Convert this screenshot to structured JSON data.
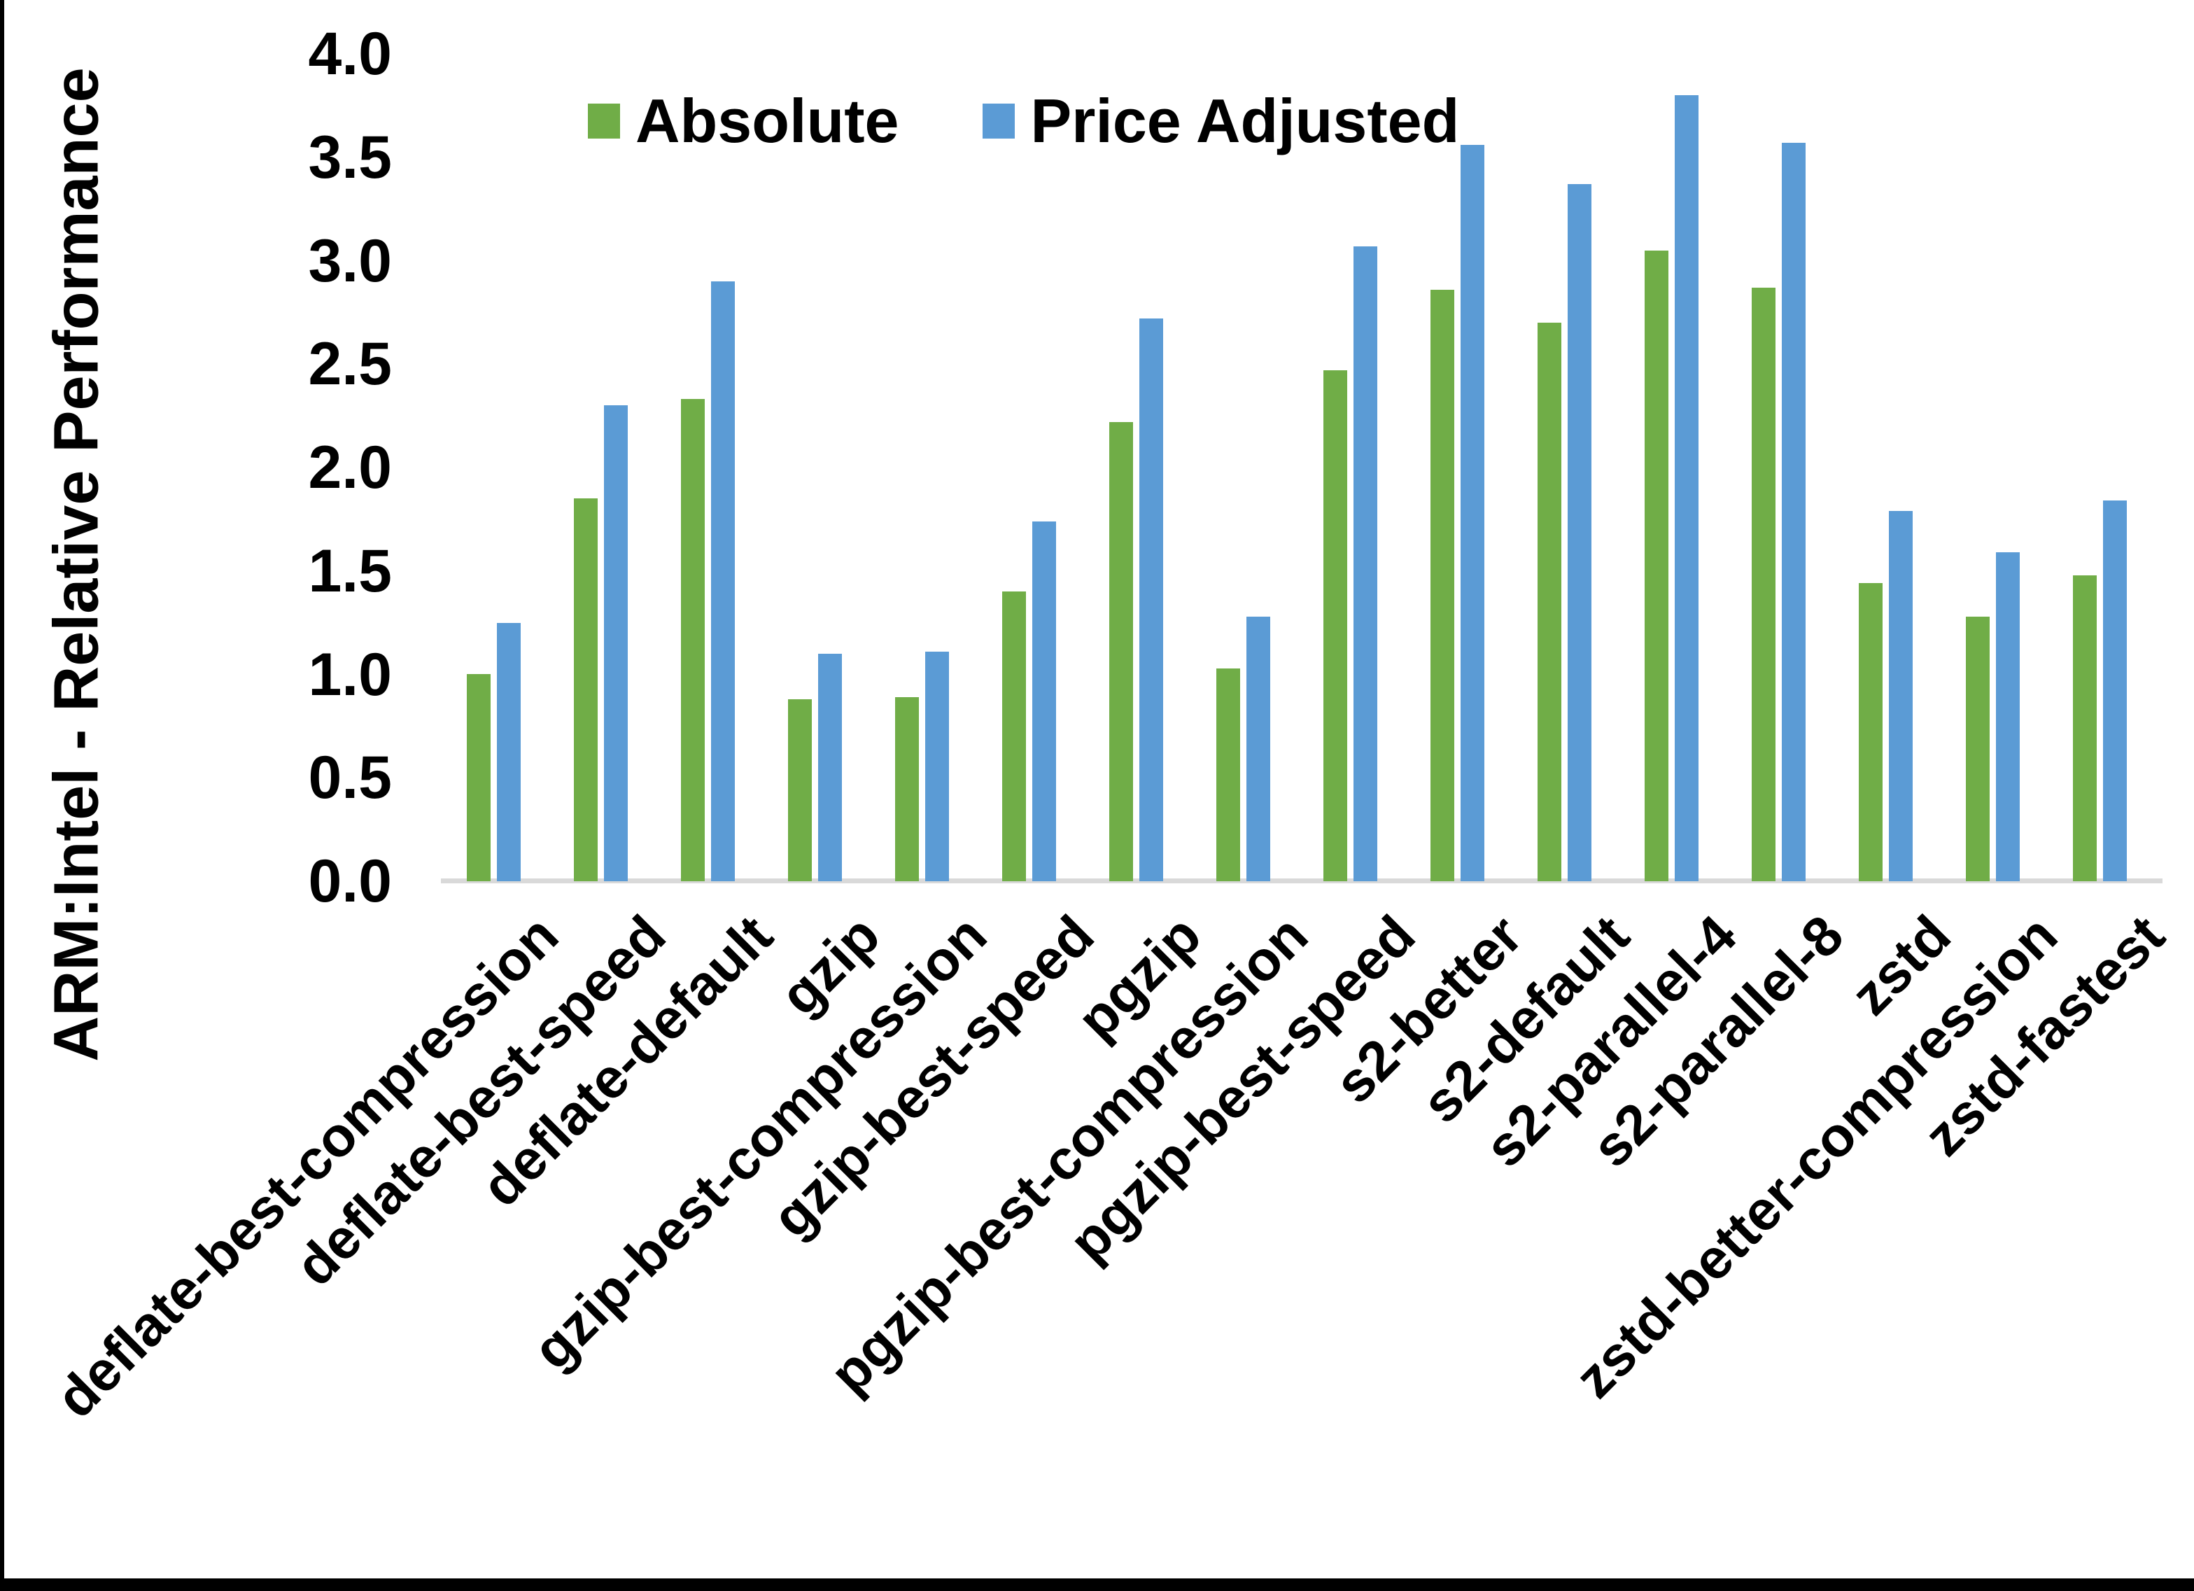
{
  "chart_data": {
    "type": "bar",
    "title": "",
    "ylabel": "ARM:Intel - Relative Performance",
    "xlabel": "",
    "ylim": [
      0.0,
      4.0
    ],
    "ytick_step": 0.5,
    "ytick_labels": [
      "0.0",
      "0.5",
      "1.0",
      "1.5",
      "2.0",
      "2.5",
      "3.0",
      "3.5",
      "4.0"
    ],
    "grid": "off",
    "legend_position": "top-center",
    "categories": [
      "deflate-best-compression",
      "deflate-best-speed",
      "deflate-default",
      "gzip",
      "gzip-best-compression",
      "gzip-best-speed",
      "pgzip",
      "pgzip-best-compression",
      "pgzip-best-speed",
      "s2-better",
      "s2-default",
      "s2-parallel-4",
      "s2-parallel-8",
      "zstd",
      "zstd-better-compression",
      "zstd-fastest"
    ],
    "series": [
      {
        "name": "Absolute",
        "color": "#70AD47",
        "values": [
          1.0,
          1.85,
          2.33,
          0.88,
          0.89,
          1.4,
          2.22,
          1.03,
          2.47,
          2.86,
          2.7,
          3.05,
          2.87,
          1.44,
          1.28,
          1.48
        ]
      },
      {
        "name": "Price Adjusted",
        "color": "#5B9BD5",
        "values": [
          1.25,
          2.3,
          2.9,
          1.1,
          1.11,
          1.74,
          2.72,
          1.28,
          3.07,
          3.56,
          3.37,
          3.8,
          3.57,
          1.79,
          1.59,
          1.84
        ]
      }
    ],
    "colors": {
      "axis_line": "#D9D9D9",
      "text": "#000000",
      "background": "#ffffff",
      "frame_border": "#000000"
    }
  }
}
